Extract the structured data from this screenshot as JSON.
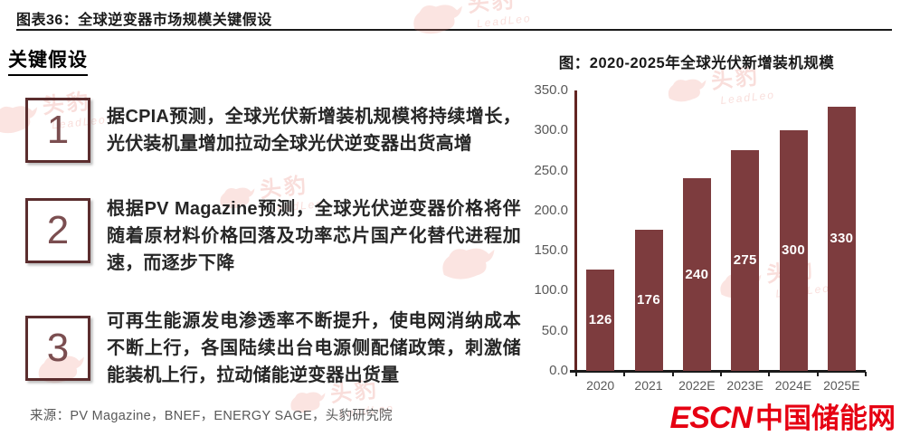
{
  "page": {
    "title": "图表36：全球逆变器市场规模关键假设",
    "section_heading": "关键假设",
    "source": "来源：PV Magazine，BNEF，ENERGY SAGE，头豹研究院"
  },
  "assumptions": {
    "items": [
      {
        "number": "1",
        "text": "据CPIA预测，全球光伏新增装机规模将持续增长，光伏装机量增加拉动全球光伏逆变器出货高增"
      },
      {
        "number": "2",
        "text": "根据PV Magazine预测，全球光伏逆变器价格将伴随着原材料价格回落及功率芯片国产化替代进程加速，而逐步下降"
      },
      {
        "number": "3",
        "text": "可再生能源发电渗透率不断提升，使电网消纳成本不断上行，各国陆续出台电源侧配储政策，刺激储能装机上行，拉动储能逆变器出货量"
      }
    ]
  },
  "chart_data": {
    "type": "bar",
    "title": "图：2020-2025年全球光伏新增装机规模",
    "categories": [
      "2020",
      "2021",
      "2022E",
      "2023E",
      "2024E",
      "2025E"
    ],
    "values": [
      126,
      176,
      240,
      275,
      300,
      330
    ],
    "data_labels": [
      "126",
      "176",
      "240",
      "275",
      "300",
      "330"
    ],
    "ylim": [
      0,
      350
    ],
    "ytick_step": 50,
    "yticks": [
      "350.0",
      "300.0",
      "250.0",
      "200.0",
      "150.0",
      "100.0",
      "50.0",
      "0.0"
    ],
    "bar_color": "#7d3c3e",
    "axis_color": "#632523",
    "grid": false,
    "legend": false
  },
  "branding": {
    "watermark_cn": "头豹",
    "watermark_en": "LeadLeo",
    "escn": "ESCN",
    "escn_cn": "中国储能网",
    "escn_color": "#e60012"
  }
}
